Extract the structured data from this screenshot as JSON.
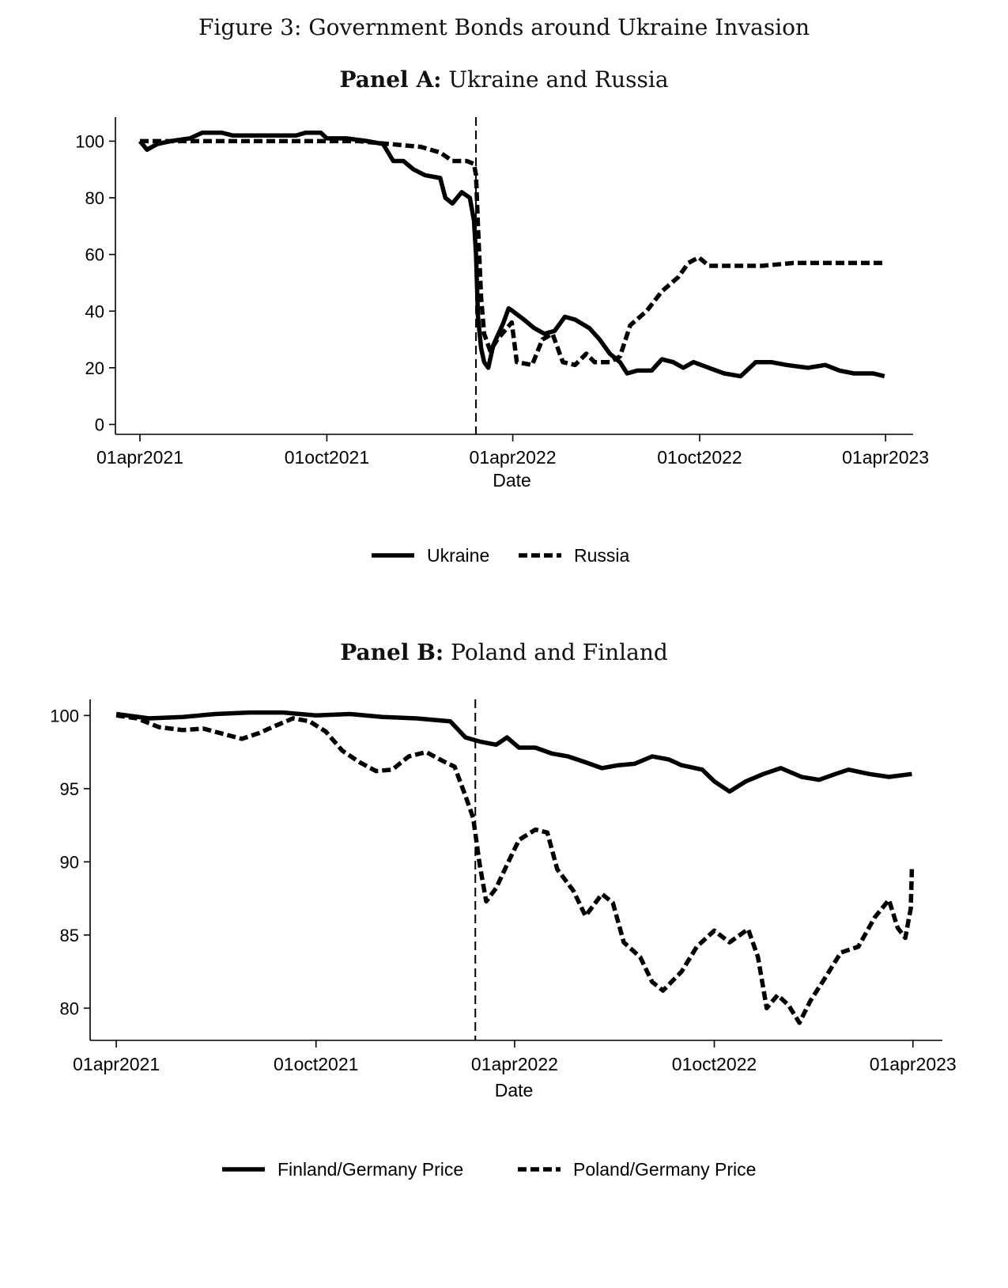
{
  "figure_title": "Figure 3: Government Bonds around Ukraine Invasion",
  "colors": {
    "line": "#000000",
    "background": "#ffffff"
  },
  "chart_data": [
    {
      "panel_label": "Panel A:",
      "panel_name": "Ukraine and Russia",
      "type": "line",
      "xlabel": "Date",
      "ylabel": "",
      "x_ticks": [
        "01apr2021",
        "01oct2021",
        "01apr2022",
        "01oct2022",
        "01apr2023"
      ],
      "y_ticks": [
        0,
        20,
        40,
        60,
        80,
        100
      ],
      "xlim": [
        "2021-03-08",
        "2023-04-28"
      ],
      "ylim": [
        -3.5,
        108.5
      ],
      "invasion_date": "2022-02-24",
      "legend_position": "bottom",
      "series": [
        {
          "name": "Ukraine",
          "style": "solid",
          "points": [
            [
              "2021-04-01",
              100
            ],
            [
              "2021-04-08",
              97
            ],
            [
              "2021-04-18",
              99
            ],
            [
              "2021-05-01",
              100
            ],
            [
              "2021-05-20",
              101
            ],
            [
              "2021-06-01",
              103
            ],
            [
              "2021-06-20",
              103
            ],
            [
              "2021-07-01",
              102
            ],
            [
              "2021-08-01",
              102
            ],
            [
              "2021-09-01",
              102
            ],
            [
              "2021-09-10",
              103
            ],
            [
              "2021-09-25",
              103
            ],
            [
              "2021-10-01",
              101
            ],
            [
              "2021-10-20",
              101
            ],
            [
              "2021-11-10",
              100
            ],
            [
              "2021-11-25",
              99
            ],
            [
              "2021-12-05",
              93
            ],
            [
              "2021-12-15",
              93
            ],
            [
              "2021-12-25",
              90
            ],
            [
              "2022-01-05",
              88
            ],
            [
              "2022-01-20",
              87
            ],
            [
              "2022-01-25",
              80
            ],
            [
              "2022-02-01",
              78
            ],
            [
              "2022-02-10",
              82
            ],
            [
              "2022-02-18",
              80
            ],
            [
              "2022-02-22",
              72
            ],
            [
              "2022-02-24",
              60
            ],
            [
              "2022-02-26",
              38
            ],
            [
              "2022-03-01",
              27
            ],
            [
              "2022-03-04",
              22
            ],
            [
              "2022-03-08",
              20
            ],
            [
              "2022-03-13",
              28
            ],
            [
              "2022-03-18",
              32
            ],
            [
              "2022-03-23",
              36
            ],
            [
              "2022-03-28",
              41
            ],
            [
              "2022-04-01",
              40
            ],
            [
              "2022-04-12",
              37
            ],
            [
              "2022-04-22",
              34
            ],
            [
              "2022-05-02",
              32
            ],
            [
              "2022-05-12",
              33
            ],
            [
              "2022-05-22",
              38
            ],
            [
              "2022-06-01",
              37
            ],
            [
              "2022-06-15",
              34
            ],
            [
              "2022-06-25",
              30
            ],
            [
              "2022-07-05",
              25
            ],
            [
              "2022-07-15",
              22
            ],
            [
              "2022-07-22",
              18
            ],
            [
              "2022-08-01",
              19
            ],
            [
              "2022-08-15",
              19
            ],
            [
              "2022-08-25",
              23
            ],
            [
              "2022-09-05",
              22
            ],
            [
              "2022-09-15",
              20
            ],
            [
              "2022-09-25",
              22
            ],
            [
              "2022-10-10",
              20
            ],
            [
              "2022-10-25",
              18
            ],
            [
              "2022-11-10",
              17
            ],
            [
              "2022-11-25",
              22
            ],
            [
              "2022-12-10",
              22
            ],
            [
              "2022-12-25",
              21
            ],
            [
              "2023-01-15",
              20
            ],
            [
              "2023-02-01",
              21
            ],
            [
              "2023-02-15",
              19
            ],
            [
              "2023-03-01",
              18
            ],
            [
              "2023-03-20",
              18
            ],
            [
              "2023-03-31",
              17
            ]
          ]
        },
        {
          "name": "Russia",
          "style": "dashed",
          "points": [
            [
              "2021-04-01",
              100
            ],
            [
              "2021-05-01",
              100
            ],
            [
              "2021-07-01",
              100
            ],
            [
              "2021-09-01",
              100
            ],
            [
              "2021-10-01",
              100
            ],
            [
              "2021-11-01",
              100
            ],
            [
              "2021-12-01",
              99
            ],
            [
              "2022-01-01",
              98
            ],
            [
              "2022-01-20",
              96
            ],
            [
              "2022-02-01",
              93
            ],
            [
              "2022-02-15",
              93
            ],
            [
              "2022-02-22",
              92
            ],
            [
              "2022-02-24",
              88
            ],
            [
              "2022-02-26",
              70
            ],
            [
              "2022-03-01",
              45
            ],
            [
              "2022-03-04",
              32
            ],
            [
              "2022-03-10",
              26
            ],
            [
              "2022-03-17",
              30
            ],
            [
              "2022-03-24",
              33
            ],
            [
              "2022-03-31",
              36
            ],
            [
              "2022-04-05",
              22
            ],
            [
              "2022-04-20",
              21
            ],
            [
              "2022-04-30",
              30
            ],
            [
              "2022-05-10",
              32
            ],
            [
              "2022-05-20",
              22
            ],
            [
              "2022-06-01",
              21
            ],
            [
              "2022-06-12",
              25
            ],
            [
              "2022-06-20",
              22
            ],
            [
              "2022-07-05",
              22
            ],
            [
              "2022-07-15",
              24
            ],
            [
              "2022-07-25",
              35
            ],
            [
              "2022-08-10",
              40
            ],
            [
              "2022-08-25",
              47
            ],
            [
              "2022-09-10",
              52
            ],
            [
              "2022-09-20",
              57
            ],
            [
              "2022-09-30",
              59
            ],
            [
              "2022-10-10",
              56
            ],
            [
              "2022-11-01",
              56
            ],
            [
              "2022-12-01",
              56
            ],
            [
              "2023-01-01",
              57
            ],
            [
              "2023-02-01",
              57
            ],
            [
              "2023-03-31",
              57
            ]
          ]
        }
      ]
    },
    {
      "panel_label": "Panel B:",
      "panel_name": "Poland and Finland",
      "type": "line",
      "xlabel": "Date",
      "ylabel": "",
      "x_ticks": [
        "01apr2021",
        "01oct2021",
        "01apr2022",
        "01oct2022",
        "01apr2023"
      ],
      "y_ticks": [
        80,
        85,
        90,
        95,
        100
      ],
      "xlim": [
        "2021-03-08",
        "2023-04-28"
      ],
      "ylim": [
        77.8,
        101.1
      ],
      "invasion_date": "2022-02-24",
      "legend_position": "bottom",
      "series": [
        {
          "name": "Finland/Germany Price",
          "style": "solid",
          "points": [
            [
              "2021-04-01",
              100.1
            ],
            [
              "2021-05-01",
              99.8
            ],
            [
              "2021-06-01",
              99.9
            ],
            [
              "2021-07-01",
              100.1
            ],
            [
              "2021-08-01",
              100.2
            ],
            [
              "2021-09-01",
              100.2
            ],
            [
              "2021-10-01",
              100.0
            ],
            [
              "2021-11-01",
              100.1
            ],
            [
              "2021-12-01",
              99.9
            ],
            [
              "2022-01-01",
              99.8
            ],
            [
              "2022-02-01",
              99.6
            ],
            [
              "2022-02-15",
              98.5
            ],
            [
              "2022-03-01",
              98.2
            ],
            [
              "2022-03-15",
              98.0
            ],
            [
              "2022-03-25",
              98.5
            ],
            [
              "2022-04-05",
              97.8
            ],
            [
              "2022-04-20",
              97.8
            ],
            [
              "2022-05-05",
              97.4
            ],
            [
              "2022-05-20",
              97.2
            ],
            [
              "2022-06-05",
              96.8
            ],
            [
              "2022-06-20",
              96.4
            ],
            [
              "2022-07-05",
              96.6
            ],
            [
              "2022-07-20",
              96.7
            ],
            [
              "2022-08-05",
              97.2
            ],
            [
              "2022-08-20",
              97.0
            ],
            [
              "2022-09-01",
              96.6
            ],
            [
              "2022-09-20",
              96.3
            ],
            [
              "2022-10-01",
              95.5
            ],
            [
              "2022-10-15",
              94.8
            ],
            [
              "2022-10-30",
              95.5
            ],
            [
              "2022-11-15",
              96.0
            ],
            [
              "2022-12-01",
              96.4
            ],
            [
              "2022-12-20",
              95.8
            ],
            [
              "2023-01-05",
              95.6
            ],
            [
              "2023-01-20",
              96.0
            ],
            [
              "2023-02-01",
              96.3
            ],
            [
              "2023-02-20",
              96.0
            ],
            [
              "2023-03-10",
              95.8
            ],
            [
              "2023-03-31",
              96.0
            ]
          ]
        },
        {
          "name": "Poland/Germany Price",
          "style": "dashed",
          "points": [
            [
              "2021-04-01",
              100.0
            ],
            [
              "2021-04-20",
              99.8
            ],
            [
              "2021-05-10",
              99.2
            ],
            [
              "2021-06-01",
              99.0
            ],
            [
              "2021-06-20",
              99.1
            ],
            [
              "2021-07-10",
              98.7
            ],
            [
              "2021-07-25",
              98.4
            ],
            [
              "2021-08-10",
              98.8
            ],
            [
              "2021-08-25",
              99.3
            ],
            [
              "2021-09-10",
              99.8
            ],
            [
              "2021-09-25",
              99.6
            ],
            [
              "2021-10-10",
              98.9
            ],
            [
              "2021-10-25",
              97.6
            ],
            [
              "2021-11-10",
              96.8
            ],
            [
              "2021-11-25",
              96.2
            ],
            [
              "2021-12-10",
              96.3
            ],
            [
              "2021-12-25",
              97.2
            ],
            [
              "2022-01-10",
              97.5
            ],
            [
              "2022-01-25",
              96.9
            ],
            [
              "2022-02-05",
              96.5
            ],
            [
              "2022-02-15",
              94.5
            ],
            [
              "2022-02-22",
              93.0
            ],
            [
              "2022-02-28",
              89.8
            ],
            [
              "2022-03-06",
              87.3
            ],
            [
              "2022-03-15",
              88.2
            ],
            [
              "2022-03-25",
              89.8
            ],
            [
              "2022-04-05",
              91.5
            ],
            [
              "2022-04-20",
              92.2
            ],
            [
              "2022-05-01",
              92.0
            ],
            [
              "2022-05-10",
              89.5
            ],
            [
              "2022-05-25",
              88.0
            ],
            [
              "2022-06-05",
              86.3
            ],
            [
              "2022-06-20",
              87.8
            ],
            [
              "2022-06-30",
              87.2
            ],
            [
              "2022-07-10",
              84.5
            ],
            [
              "2022-07-25",
              83.5
            ],
            [
              "2022-08-05",
              81.8
            ],
            [
              "2022-08-15",
              81.2
            ],
            [
              "2022-09-01",
              82.5
            ],
            [
              "2022-09-15",
              84.2
            ],
            [
              "2022-10-01",
              85.3
            ],
            [
              "2022-10-15",
              84.5
            ],
            [
              "2022-11-01",
              85.4
            ],
            [
              "2022-11-10",
              83.5
            ],
            [
              "2022-11-18",
              80.0
            ],
            [
              "2022-11-28",
              80.9
            ],
            [
              "2022-12-08",
              80.2
            ],
            [
              "2022-12-18",
              79.0
            ],
            [
              "2022-12-28",
              80.5
            ],
            [
              "2023-01-10",
              82.0
            ],
            [
              "2023-01-25",
              83.8
            ],
            [
              "2023-02-10",
              84.2
            ],
            [
              "2023-02-25",
              86.2
            ],
            [
              "2023-03-10",
              87.4
            ],
            [
              "2023-03-18",
              85.5
            ],
            [
              "2023-03-25",
              84.8
            ],
            [
              "2023-03-28",
              86.0
            ],
            [
              "2023-03-30",
              86.8
            ],
            [
              "2023-03-31",
              89.5
            ]
          ]
        }
      ]
    }
  ]
}
